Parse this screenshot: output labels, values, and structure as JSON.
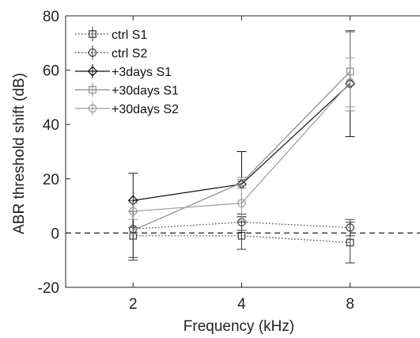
{
  "chart_data": {
    "type": "line",
    "xlabel": "Frequency (kHz)",
    "ylabel": "ABR threshold shift (dB)",
    "x": [
      2,
      4,
      8
    ],
    "x_scale": "log2",
    "x_ticks": [
      "2",
      "4",
      "8"
    ],
    "ylim": [
      -20,
      80
    ],
    "y_ticks": [
      "-20",
      "0",
      "20",
      "40",
      "60",
      "80"
    ],
    "grid": false,
    "legend_position": "top-left",
    "reference_line": {
      "y": 0,
      "style": "dashed"
    },
    "series": [
      {
        "name": "ctrl S1",
        "values": [
          -1,
          -1,
          -3.5
        ],
        "err": [
          9,
          5,
          7.5
        ],
        "color": "#3a3a3a",
        "line": "dotted",
        "marker": "square"
      },
      {
        "name": "ctrl S2",
        "values": [
          1.5,
          4,
          2
        ],
        "err": [
          10.5,
          3,
          3
        ],
        "color": "#3a3a3a",
        "line": "dotted",
        "marker": "circle"
      },
      {
        "name": "+3days S1",
        "values": [
          12,
          18,
          55
        ],
        "err": [
          10,
          12,
          19.5
        ],
        "color": "#111111",
        "line": "solid",
        "marker": "diamond"
      },
      {
        "name": "+30days S1",
        "values": [
          1,
          18.5,
          59.5
        ],
        "err": [
          0,
          2,
          14.5
        ],
        "color": "#8a8a8a",
        "line": "solid",
        "marker": "square"
      },
      {
        "name": "+30days S2",
        "values": [
          8,
          11,
          55.5
        ],
        "err": [
          3,
          6.5,
          9
        ],
        "color": "#9a9a9a",
        "line": "solid",
        "marker": "circle"
      }
    ]
  }
}
